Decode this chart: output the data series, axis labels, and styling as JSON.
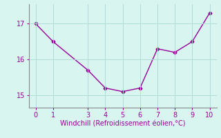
{
  "x": [
    0,
    1,
    3,
    4,
    5,
    6,
    7,
    8,
    9,
    10
  ],
  "y": [
    17.0,
    16.5,
    15.7,
    15.2,
    15.1,
    15.2,
    16.3,
    16.2,
    16.5,
    17.3
  ],
  "line_color": "#990099",
  "marker": "D",
  "marker_size": 2.5,
  "background_color": "#d8f5f0",
  "grid_color": "#b0ddd8",
  "xlabel": "Windchill (Refroidissement éolien,°C)",
  "xlabel_color": "#990099",
  "xlabel_fontsize": 7,
  "tick_color": "#990099",
  "tick_fontsize": 7,
  "ylim": [
    14.65,
    17.55
  ],
  "xlim": [
    -0.4,
    10.4
  ],
  "yticks": [
    15,
    16,
    17
  ],
  "xticks": [
    0,
    1,
    3,
    4,
    5,
    6,
    7,
    8,
    9,
    10
  ],
  "spine_color": "#888888",
  "line_width": 1.0
}
